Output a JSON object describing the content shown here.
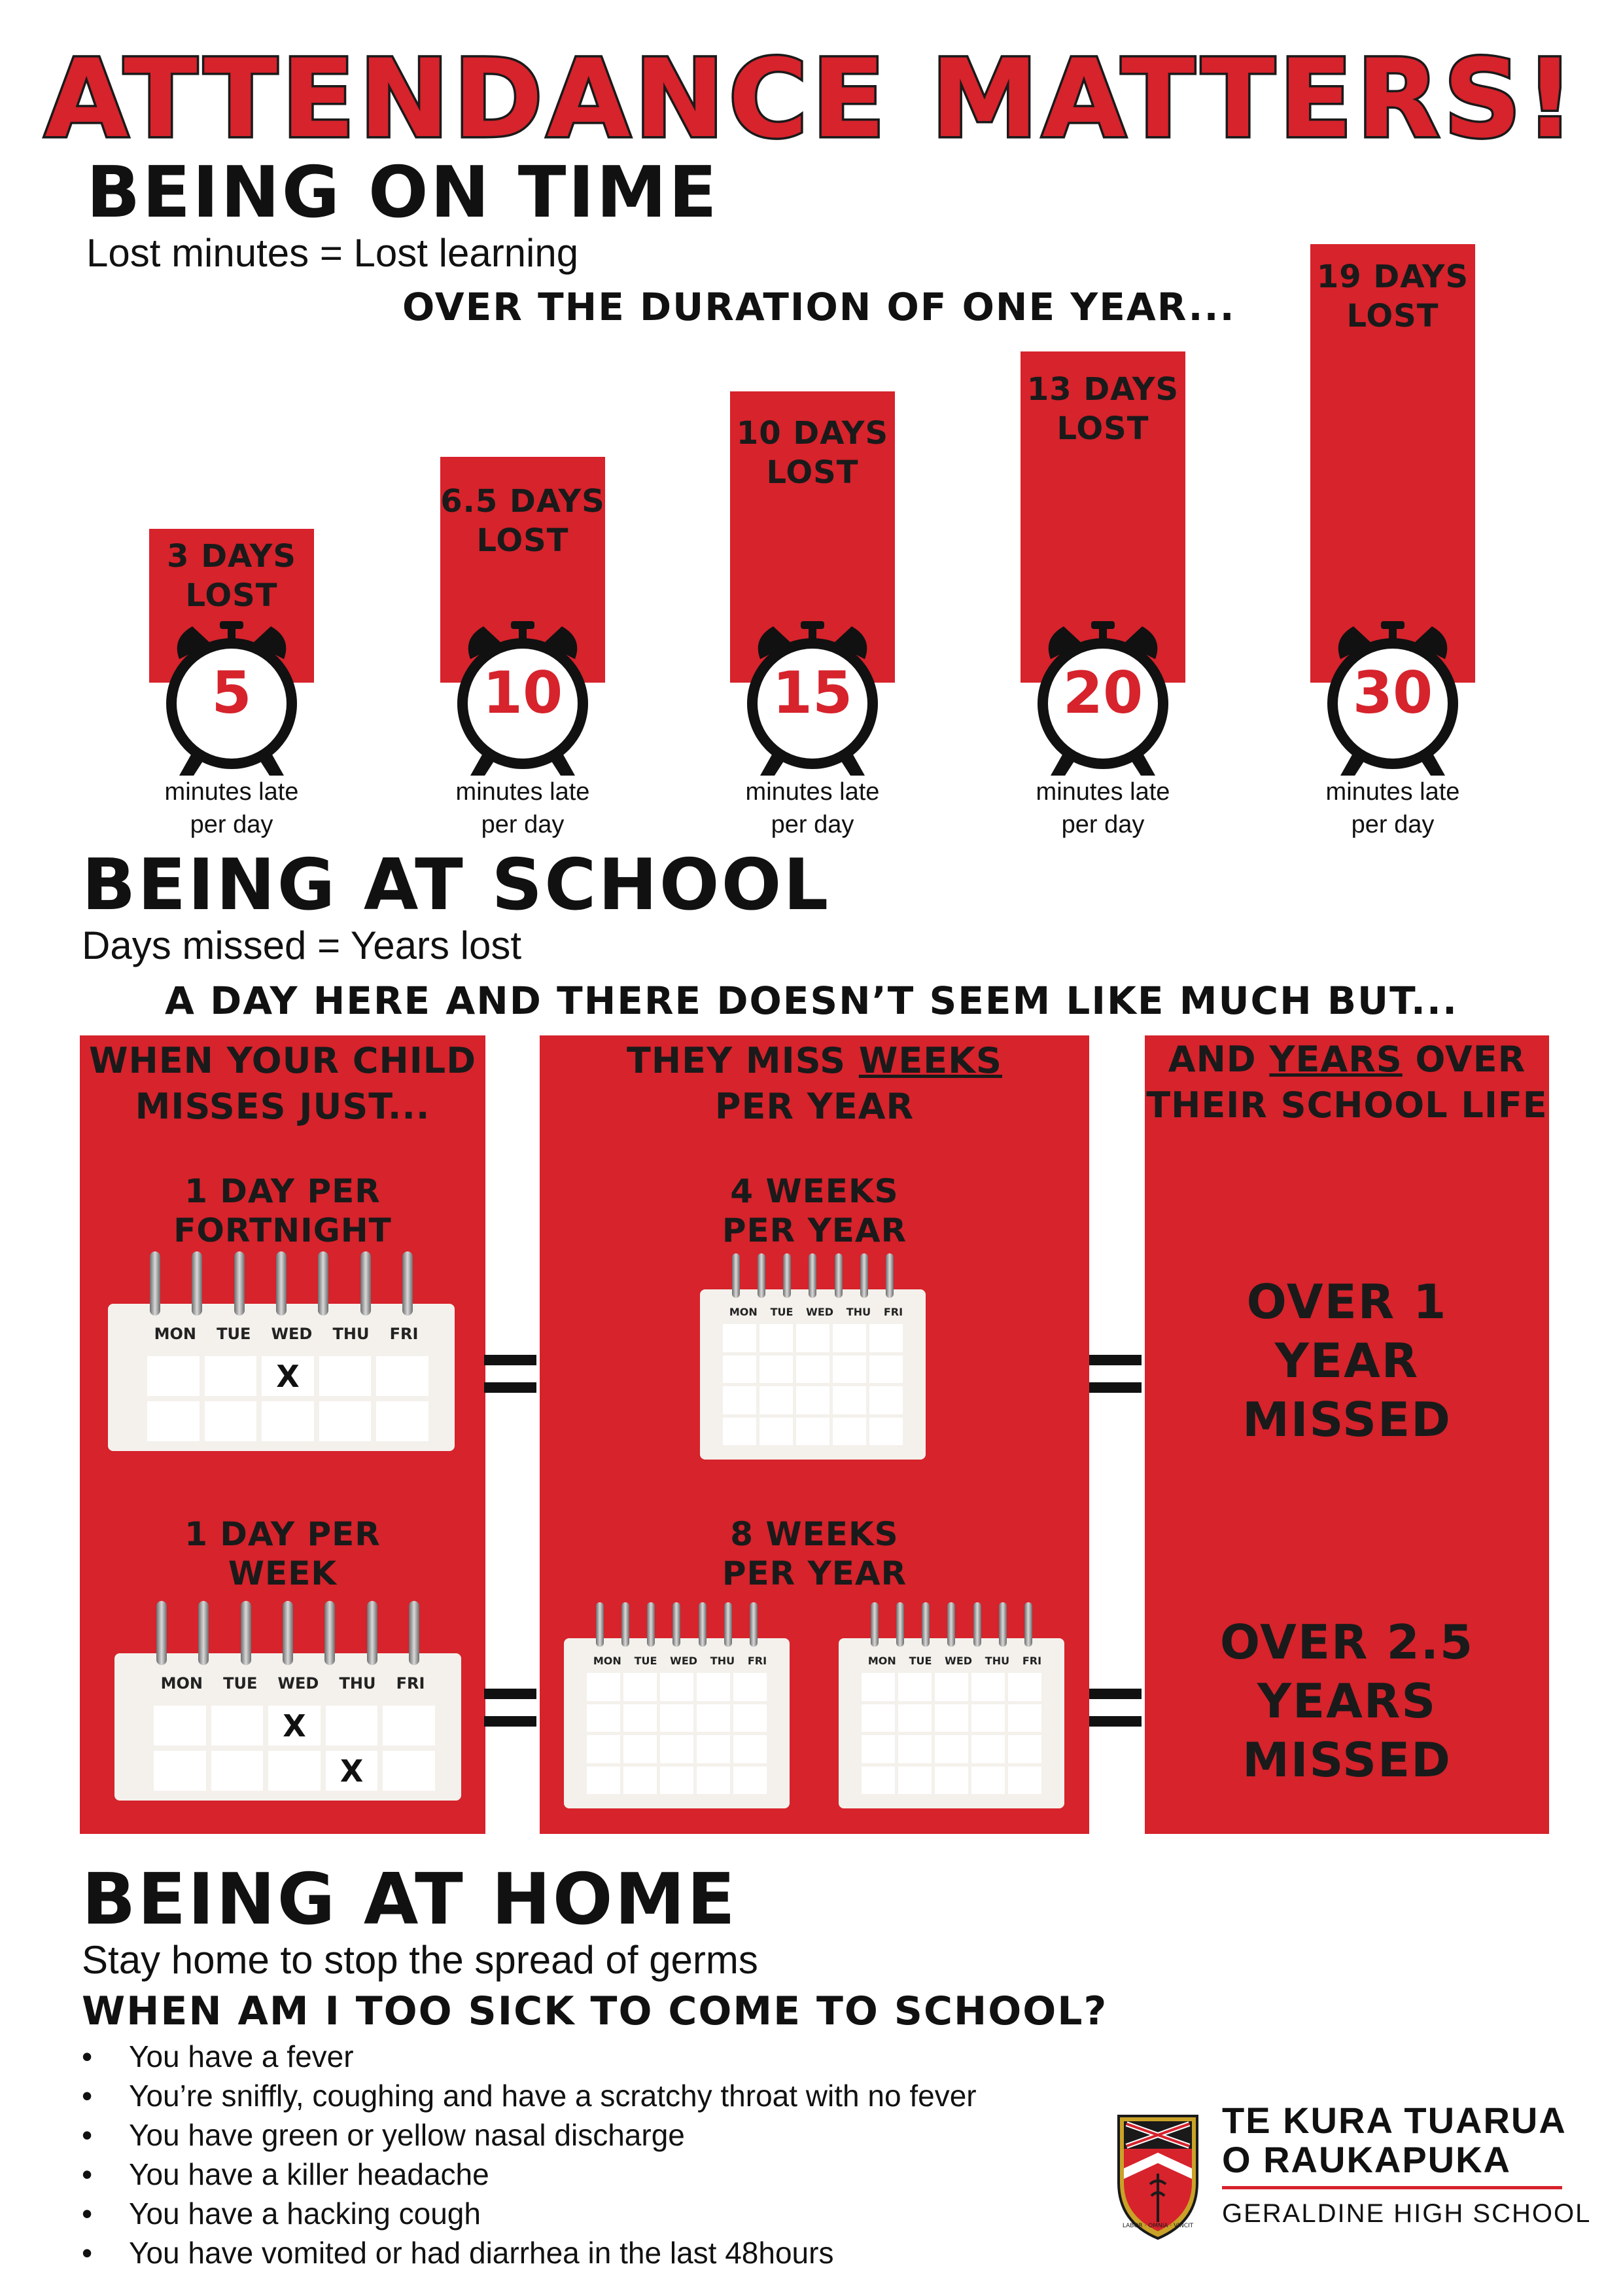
{
  "title": "ATTENDANCE MATTERS!",
  "on_time": {
    "heading": "BEING ON TIME",
    "subheading": "Lost minutes = Lost learning",
    "intro": "OVER THE DURATION OF ONE YEAR...",
    "caption_line1": "minutes late",
    "caption_line2": "per day",
    "items": [
      {
        "minutes": "5",
        "days_line1": "3 DAYS",
        "days_line2": "LOST"
      },
      {
        "minutes": "10",
        "days_line1": "6.5 DAYS",
        "days_line2": "LOST"
      },
      {
        "minutes": "15",
        "days_line1": "10 DAYS",
        "days_line2": "LOST"
      },
      {
        "minutes": "20",
        "days_line1": "13 DAYS",
        "days_line2": "LOST"
      },
      {
        "minutes": "30",
        "days_line1": "19 DAYS",
        "days_line2": "LOST"
      }
    ]
  },
  "at_school": {
    "heading": "BEING AT SCHOOL",
    "subheading": "Days missed = Years lost",
    "intro": "A DAY HERE AND THERE DOESN’T SEEM LIKE MUCH BUT...",
    "col1_header_line1": "WHEN YOUR CHILD",
    "col1_header_line2": "MISSES JUST...",
    "col2_header_pre": "THEY MISS ",
    "col2_header_u": "WEEKS",
    "col2_header_line2": "PER YEAR",
    "col3_header_pre": "AND ",
    "col3_header_u": "YEARS",
    "col3_header_post": " OVER",
    "col3_header_line2": "THEIR SCHOOL LIFE",
    "row1": {
      "freq_line1": "1 DAY PER",
      "freq_line2": "FORTNIGHT",
      "weeks_line1": "4 WEEKS",
      "weeks_line2": "PER YEAR",
      "years_line1": "OVER 1",
      "years_line2": "YEAR",
      "years_line3": "MISSED"
    },
    "row2": {
      "freq_line1": "1 DAY PER",
      "freq_line2": "WEEK",
      "weeks_line1": "8 WEEKS",
      "weeks_line2": "PER YEAR",
      "years_line1": "OVER 2.5",
      "years_line2": "YEARS",
      "years_line3": "MISSED"
    },
    "weekdays": [
      "MON",
      "TUE",
      "WED",
      "THU",
      "FRI"
    ],
    "mark": "X"
  },
  "at_home": {
    "heading": "BEING AT HOME",
    "subheading": "Stay home to stop the spread of germs",
    "question": "WHEN AM I TOO SICK TO COME TO SCHOOL?",
    "bullet": "•",
    "items": [
      "You have a fever",
      "You’re sniffly, coughing and have a scratchy throat with no fever",
      "You have green or yellow nasal discharge",
      "You have a killer headache",
      "You have a hacking cough",
      "You have vomited or had diarrhea in the last 48hours"
    ]
  },
  "school": {
    "name_line1": "TE KURA TUARUA",
    "name_line2": "O RAUKAPUKA",
    "name_english": "GERALDINE HIGH SCHOOL",
    "crest_motto": "LABOR · OMNIA · VINCIT"
  },
  "colors": {
    "accent": "#d6232c",
    "ink": "#111111",
    "paper": "#f4f1ec"
  }
}
